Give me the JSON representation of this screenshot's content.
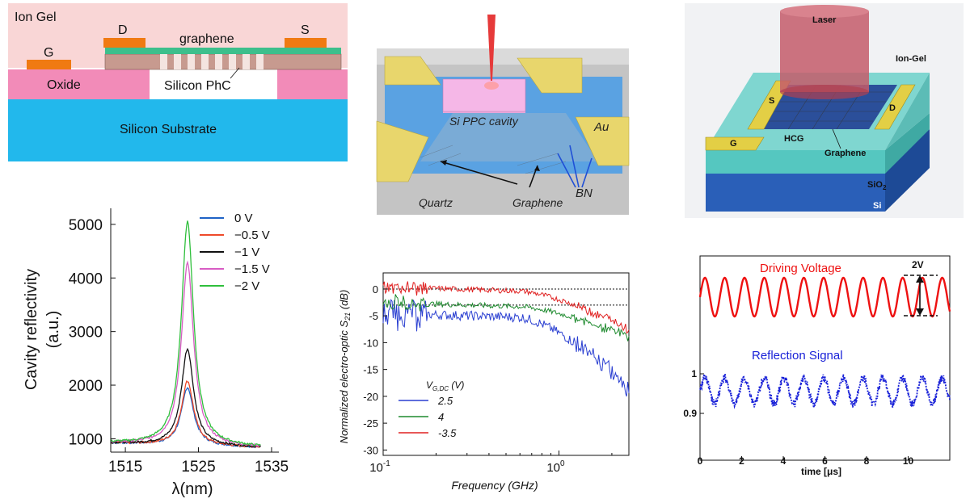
{
  "cross_section": {
    "layers": {
      "ion_gel": "Ion Gel",
      "oxide": "Oxide",
      "phc": "Silicon PhC",
      "substrate": "Silicon Substrate"
    },
    "contacts": {
      "gate": "G",
      "drain": "D",
      "source": "S"
    },
    "graphene": "graphene",
    "colors": {
      "ion_gel": "#f9d6d6",
      "oxide": "#f28bb8",
      "substrate": "#22b8ec",
      "contact": "#f07a12",
      "graphene": "#3dbf8c"
    }
  },
  "device_3d": {
    "cavity": "Si PPC cavity",
    "au": "Au",
    "quartz": "Quartz",
    "graphene": "Graphene",
    "bn": "BN"
  },
  "hcg_device": {
    "laser": "Laser",
    "ion_gel": "Ion-Gel",
    "source": "S",
    "drain": "D",
    "gate": "G",
    "hcg": "HCG",
    "graphene": "Graphene",
    "sio2_main": "SiO",
    "sio2_sub": "2",
    "si": "Si"
  },
  "chart_data": [
    {
      "type": "line",
      "title": "",
      "ylabel": "Cavity reflectivity",
      "ylabel2": "(a.u.)",
      "xlabel": "λ(nm)",
      "xlim": [
        1513,
        1536
      ],
      "ylim": [
        750,
        5300
      ],
      "xticks": [
        "1515",
        "1525",
        "1535"
      ],
      "yticks": [
        "1000",
        "2000",
        "3000",
        "4000",
        "5000"
      ],
      "peak_wavelength": 1523.5,
      "baseline": 920,
      "series": [
        {
          "name": "0 V",
          "peak": 2000,
          "color": "#1f63c6"
        },
        {
          "name": "−0.5 V",
          "peak": 2120,
          "color": "#ee4a2a"
        },
        {
          "name": "−1 V",
          "peak": 2720,
          "color": "#111111"
        },
        {
          "name": "−1.5 V",
          "peak": 4330,
          "color": "#d85cc4"
        },
        {
          "name": "−2 V",
          "peak": 5100,
          "color": "#2fbf3c"
        }
      ]
    },
    {
      "type": "line",
      "title": "",
      "ylabel_main": "Normalized electro-optic S",
      "ylabel_sub": "21",
      "ylabel_unit": " (dB)",
      "xlabel": "Frequency (GHz)",
      "xscale": "log",
      "xlim": [
        0.1,
        2.5
      ],
      "ylim": [
        -31,
        3
      ],
      "yticks": [
        "0",
        "-5",
        "-10",
        "-15",
        "-20",
        "-25",
        "-30"
      ],
      "xtick_base": "10",
      "xtick_exps": [
        "-1",
        "0"
      ],
      "reference_lines": [
        0,
        -3
      ],
      "legend_title_main": "V",
      "legend_title_sub": "G,DC",
      "legend_title_unit": " (V)",
      "series": [
        {
          "name": "2.5",
          "color": "#2a3fd1",
          "start": -4.5,
          "end": -18
        },
        {
          "name": "4",
          "color": "#1e8a2e",
          "start": -2.5,
          "end": -8.5
        },
        {
          "name": "-3.5",
          "color": "#e02020",
          "start": 0.4,
          "end": -7
        }
      ]
    },
    {
      "type": "line",
      "title": "",
      "xlabel": "time [μs]",
      "xlim": [
        0,
        12
      ],
      "xticks": [
        "0",
        "2",
        "4",
        "6",
        "8",
        "10"
      ],
      "yticks": [
        "1",
        "0.9"
      ],
      "period_us": 0.95,
      "series": [
        {
          "name": "Driving Voltage",
          "color": "#ee1111"
        },
        {
          "name": "Reflection Signal",
          "color": "#1a22d8"
        }
      ],
      "annotation": "2V"
    }
  ]
}
